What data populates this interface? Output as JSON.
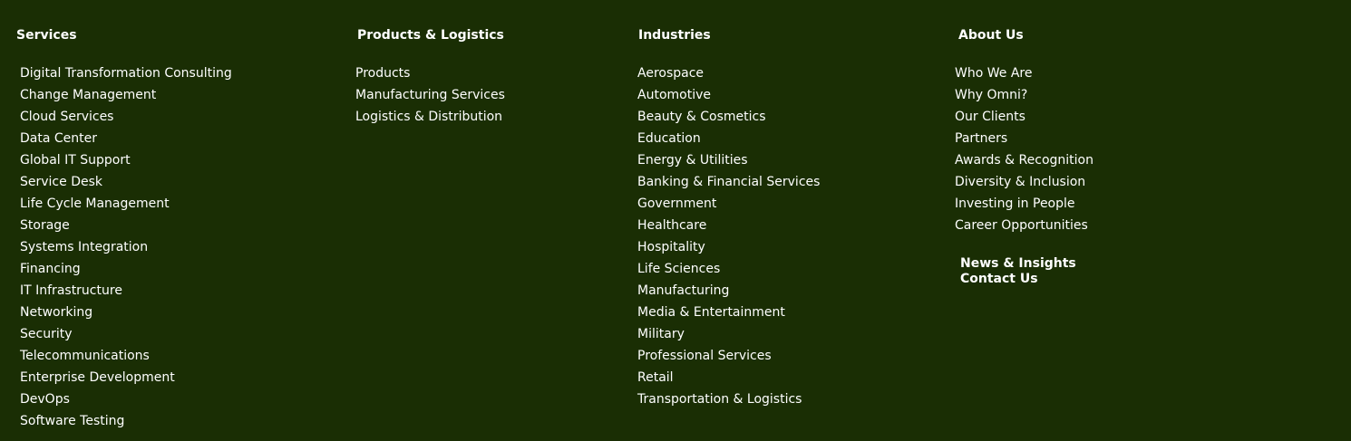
{
  "services": {
    "heading": "Services",
    "items": [
      "Digital Transformation Consulting",
      "Change Management",
      "Cloud Services",
      "Data Center",
      "Global IT Support",
      "Service Desk",
      "Life Cycle Management",
      "Storage",
      "Systems Integration",
      "Financing",
      "IT Infrastructure",
      "Networking",
      "Security",
      "Telecommunications",
      "Enterprise Development",
      "DevOps",
      "Software Testing"
    ]
  },
  "products": {
    "heading": "Products & Logistics",
    "items": [
      "Products",
      "Manufacturing Services",
      "Logistics & Distribution"
    ]
  },
  "industries": {
    "heading": "Industries",
    "items": [
      "Aerospace",
      "Automotive",
      "Beauty & Cosmetics",
      "Education",
      "Energy & Utilities",
      "Banking & Financial Services",
      "Government",
      "Healthcare",
      "Hospitality",
      "Life Sciences",
      "Manufacturing",
      "Media & Entertainment",
      "Military",
      "Professional Services",
      "Retail",
      "Transportation & Logistics"
    ]
  },
  "about": {
    "heading": "About Us",
    "items": [
      "Who We Are",
      "Why Omni?",
      "Our Clients",
      "Partners",
      "Awards & Recognition",
      "Diversity & Inclusion",
      "Investing in People",
      "Career Opportunities"
    ],
    "news_label": "News & Insights",
    "contact_label": "Contact Us"
  },
  "colors": {
    "background": "#1a2e04",
    "text": "#ffffff"
  }
}
